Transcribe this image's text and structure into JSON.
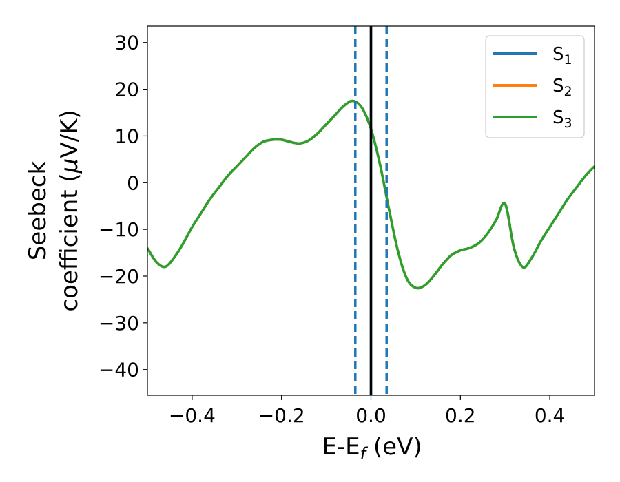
{
  "chart_data": {
    "type": "line",
    "xlabel": "E-E",
    "xlabel_sub": "f",
    "xlabel_unit": " (eV)",
    "ylabel_line1": "Seebeck",
    "ylabel_line2": "coefficient  (",
    "ylabel_mu": "μ",
    "ylabel_unit": "V/K)",
    "xlim": [
      -0.5,
      0.5
    ],
    "ylim": [
      -45.5,
      33.5
    ],
    "x_ticks": [
      -0.4,
      -0.2,
      0.0,
      0.2,
      0.4
    ],
    "x_tick_labels": [
      "−0.4",
      "−0.2",
      "0.0",
      "0.2",
      "0.4"
    ],
    "y_ticks": [
      30,
      20,
      10,
      0,
      -10,
      -20,
      -30,
      -40
    ],
    "y_tick_labels": [
      "30",
      "20",
      "10",
      "0",
      "−10",
      "−20",
      "−30",
      "−40"
    ],
    "grid": false,
    "legend_position": "top-right",
    "series": [
      {
        "name": "S",
        "sub": "1",
        "color": "#1f77b4"
      },
      {
        "name": "S",
        "sub": "2",
        "color": "#ff7f0e"
      },
      {
        "name": "S",
        "sub": "3",
        "color": "#2ca02c"
      }
    ],
    "x": [
      -0.5,
      -0.48,
      -0.46,
      -0.44,
      -0.42,
      -0.4,
      -0.38,
      -0.36,
      -0.34,
      -0.32,
      -0.3,
      -0.28,
      -0.26,
      -0.24,
      -0.22,
      -0.2,
      -0.18,
      -0.16,
      -0.14,
      -0.12,
      -0.1,
      -0.08,
      -0.06,
      -0.04,
      -0.02,
      0.0,
      0.02,
      0.04,
      0.06,
      0.08,
      0.1,
      0.12,
      0.14,
      0.16,
      0.18,
      0.2,
      0.22,
      0.24,
      0.26,
      0.28,
      0.3,
      0.32,
      0.34,
      0.36,
      0.38,
      0.4,
      0.42,
      0.44,
      0.46,
      0.48,
      0.5
    ],
    "y": [
      -14,
      -17,
      -18,
      -16,
      -13,
      -9.5,
      -6.5,
      -3.5,
      -1,
      1.5,
      3.5,
      5.5,
      7.5,
      8.8,
      9.2,
      9.2,
      8.7,
      8.4,
      9,
      10.5,
      12.5,
      14.5,
      16.5,
      17.5,
      16,
      11.5,
      4,
      -5.5,
      -14.5,
      -20.5,
      -22.5,
      -22,
      -20,
      -17.5,
      -15.5,
      -14.5,
      -14,
      -13,
      -11,
      -8,
      -4.5,
      -14.0,
      -18.1,
      -16.0,
      -12.5,
      -9.5,
      -6.5,
      -3.5,
      -1,
      1.5,
      3.5
    ],
    "vlines": [
      {
        "x": -0.035,
        "color": "#1f77b4",
        "style": "dashed"
      },
      {
        "x": 0.0,
        "color": "#1f77b4",
        "style": "solid"
      },
      {
        "x": 0.0,
        "color": "#000000",
        "style": "solid"
      },
      {
        "x": 0.035,
        "color": "#1f77b4",
        "style": "dashed"
      }
    ]
  }
}
